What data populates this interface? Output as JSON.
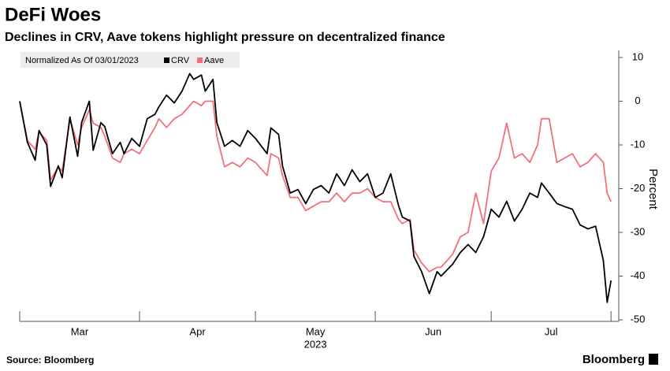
{
  "chart_data": {
    "type": "line",
    "title": "DeFi Woes",
    "subtitle": "Declines in CRV, Aave tokens highlight pressure on decentralized finance",
    "legend_title": "Normalized As Of 03/01/2023",
    "ylabel": "Percent",
    "xlabel": "2023",
    "source": "Source: Bloomberg",
    "brand": "Bloomberg",
    "x": [
      "2023-03-01",
      "2023-03-03",
      "2023-03-05",
      "2023-03-06",
      "2023-03-08",
      "2023-03-09",
      "2023-03-11",
      "2023-03-12",
      "2023-03-14",
      "2023-03-16",
      "2023-03-17",
      "2023-03-19",
      "2023-03-20",
      "2023-03-22",
      "2023-03-23",
      "2023-03-25",
      "2023-03-27",
      "2023-03-28",
      "2023-03-30",
      "2023-04-01",
      "2023-04-03",
      "2023-04-05",
      "2023-04-06",
      "2023-04-08",
      "2023-04-10",
      "2023-04-12",
      "2023-04-14",
      "2023-04-15",
      "2023-04-17",
      "2023-04-18",
      "2023-04-20",
      "2023-04-21",
      "2023-04-23",
      "2023-04-25",
      "2023-04-27",
      "2023-04-29",
      "2023-05-01",
      "2023-05-04",
      "2023-05-05",
      "2023-05-07",
      "2023-05-08",
      "2023-05-10",
      "2023-05-12",
      "2023-05-14",
      "2023-05-16",
      "2023-05-18",
      "2023-05-20",
      "2023-05-22",
      "2023-05-24",
      "2023-05-26",
      "2023-05-28",
      "2023-05-30",
      "2023-06-01",
      "2023-06-03",
      "2023-06-05",
      "2023-06-07",
      "2023-06-08",
      "2023-06-10",
      "2023-06-11",
      "2023-06-13",
      "2023-06-15",
      "2023-06-17",
      "2023-06-18",
      "2023-06-21",
      "2023-06-23",
      "2023-06-25",
      "2023-06-27",
      "2023-06-29",
      "2023-07-01",
      "2023-07-03",
      "2023-07-05",
      "2023-07-07",
      "2023-07-09",
      "2023-07-11",
      "2023-07-13",
      "2023-07-14",
      "2023-07-16",
      "2023-07-18",
      "2023-07-20",
      "2023-07-22",
      "2023-07-24",
      "2023-07-26",
      "2023-07-28",
      "2023-07-30",
      "2023-07-31",
      "2023-08-01"
    ],
    "series": [
      {
        "name": "CRV",
        "color": "#000000",
        "values": [
          0,
          -9.4,
          -13.5,
          -6.7,
          -10,
          -19.5,
          -14.8,
          -17.5,
          -3.6,
          -12.6,
          -4.9,
          0,
          -11.2,
          -4.9,
          -5.8,
          -12,
          -9.4,
          -12,
          -8.5,
          -10.3,
          -4,
          -3,
          -1.3,
          1.4,
          -0.4,
          2.3,
          6.3,
          5,
          6,
          2.3,
          5,
          -4.9,
          -10.3,
          -9,
          -10.3,
          -6.7,
          -8.5,
          -12,
          -6.1,
          -7.6,
          -14.8,
          -21,
          -20.2,
          -23.4,
          -20.2,
          -19.3,
          -21,
          -16.6,
          -19.3,
          -15.7,
          -18.4,
          -16.6,
          -22,
          -21,
          -16.6,
          -23.8,
          -26.5,
          -27.4,
          -35.5,
          -39,
          -44,
          -39,
          -40,
          -37.3,
          -34.6,
          -32.8,
          -34.6,
          -31,
          -24.7,
          -26.5,
          -22.9,
          -27.4,
          -24.7,
          -21,
          -22,
          -18.7,
          -21,
          -23.4,
          -24.1,
          -24.7,
          -28.3,
          -29.2,
          -28.6,
          -36.4,
          -46,
          -41
        ]
      },
      {
        "name": "Aave",
        "color": "#f2707a",
        "values": [
          0,
          -9,
          -11,
          -7,
          -9,
          -18,
          -15,
          -16,
          -4,
          -10,
          -6,
          -2,
          -5,
          -6,
          -8,
          -13,
          -14,
          -12,
          -11,
          -12,
          -9,
          -6,
          -4,
          -6,
          -4,
          -3,
          -1,
          0,
          -1,
          0,
          0,
          -8,
          -15,
          -14,
          -15,
          -13,
          -14,
          -17,
          -12,
          -13,
          -17,
          -22,
          -22,
          -25,
          -24,
          -23,
          -23,
          -21,
          -23,
          -21,
          -21,
          -20,
          -22,
          -23,
          -23,
          -27,
          -28,
          -27,
          -34,
          -37,
          -39,
          -38,
          -38,
          -35,
          -31,
          -30,
          -21,
          -28,
          -16,
          -13,
          -5,
          -13,
          -12,
          -14,
          -10,
          -4,
          -4,
          -14,
          -13,
          -12,
          -15,
          -14,
          -12,
          -14,
          -21,
          -23
        ]
      }
    ],
    "xlim": [
      "2023-03-01",
      "2023-08-03"
    ],
    "xticks": [
      {
        "value": "2023-03-01",
        "label": "Mar"
      },
      {
        "value": "2023-04-01",
        "label": "Apr"
      },
      {
        "value": "2023-05-01",
        "label": "May"
      },
      {
        "value": "2023-06-01",
        "label": "Jun"
      },
      {
        "value": "2023-07-01",
        "label": "Jul"
      }
    ],
    "ylim": [
      -50,
      10
    ],
    "yticks": [
      -50,
      -40,
      -30,
      -20,
      -10,
      0,
      10
    ]
  }
}
